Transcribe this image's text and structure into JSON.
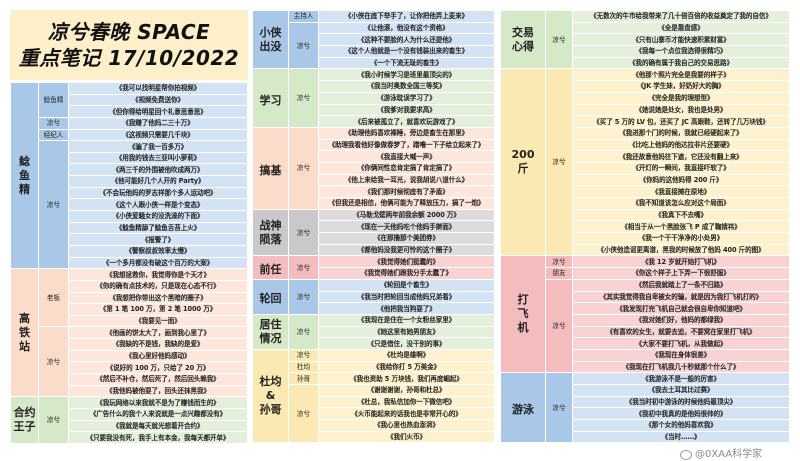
{
  "title": {
    "line1": "凉兮春晚 SPACE",
    "line2": "重点笔记 17/10/2022"
  },
  "watermark": "@0XAA科学家",
  "colors": {
    "blue": [
      "#a9c8e8",
      "#d3e3f4"
    ],
    "peach": [
      "#fbdccb",
      "#fde7dc"
    ],
    "green": [
      "#d5e8c8",
      "#e5f0dc"
    ],
    "grey": [
      "#c9c9c9",
      "#dcdcdc"
    ],
    "pink": [
      "#f5bcbf",
      "#f9d3d4"
    ],
    "yellow": [
      "#fbe9b3",
      "#fdf2cd"
    ]
  },
  "columns": [
    {
      "sections": [
        {
          "label": "鲶鱼精",
          "color": "blue",
          "groups": [
            {
              "speaker": "鲶鱼精",
              "quotes": [
                "《我可以找明星帮你拍视频》",
                "《视频免费送你》",
                "《但你得给明星回个礼意思意思》"
              ]
            },
            {
              "speaker": "凉兮",
              "quotes": [
                "《我赚了他妈二三十万》"
              ]
            },
            {
              "speaker": "经纪人",
              "quotes": [
                "《这视频只需要几千块》"
              ]
            },
            {
              "speaker": "凉兮",
              "quotes": [
                "《骗了我一百多万》",
                "《用我的钱去三亚叫小萝莉》",
                "《两三千的外围被他吹成两万》",
                "《他可能好几个人开的 Party》",
                "《不会玩他妈的罗志祥那个多人运动吧》",
                "《这个人跟小侠一样是个变态》",
                "《小侠爱騒女的没洗澡的下面》",
                "《鲶鱼精舔了鲶鱼舌苔上火》",
                "《报警了》",
                "《警察叔叔效率太慢》",
                "《一个多月都没有破这个百万的大案》"
              ]
            }
          ]
        },
        {
          "label": "高铁站",
          "color": "peach",
          "groups": [
            {
              "speaker": "老板",
              "quotes": [
                "《我想拯救你，我觉得你是个天才》",
                "《你的确有点技术的，只是现在心态不行》",
                "《我想把你带出这个黑暗的圈子》",
                "《第 1 笔 100 万，第 2 笔 1000 万》",
                "《我要见一面》"
              ]
            },
            {
              "speaker": "凉兮",
              "quotes": [
                "《他画的饼太大了，画到我心里了》",
                "《我缺的不是钱，我缺的是爱》",
                "《我心里好他妈感动》",
                "《说好的 100 万，只给了 20 万》",
                "《然后不补仓，然后死了，然后回头赖我》",
                "《我他妈被他耍了，回头还抹黑我》"
              ]
            }
          ]
        },
        {
          "label": "合约王子",
          "color": "green",
          "groups": [
            {
              "speaker": "凉兮",
              "quotes": [
                "《我玩网络以来我就不是为了赚钱而生的》",
                "《广告什么的我个人来说就是一点兴趣都没有》",
                "《我就是每天就光想着开合约》",
                "《只要我没有死，我手上有本金，我每天都开单》"
              ]
            }
          ]
        }
      ]
    },
    {
      "sections": [
        {
          "label": "小侠出没",
          "color": "blue",
          "groups": [
            {
              "speaker": "主持人",
              "quotes": [
                "《小侠在底下举手了，让你把他弄上麦来》"
              ]
            },
            {
              "speaker": "凉兮",
              "quotes": [
                "《让他滚，他没有这个资格》",
                "《这种不要脸的人为什么还提他》",
                "《这个人他就是一个没有钱装出来的畜生》",
                "《一个下流无耻的畜生》"
              ]
            }
          ]
        },
        {
          "label": "学习",
          "color": "green",
          "groups": [
            {
              "speaker": "凉兮",
              "quotes": [
                "《我小时候学习是班里最顶尖的》",
                "《我当时奥数全国三等奖》",
                "《游泳耽误学习了》",
                "《我爹对我要求高》",
                "《后来被孤立了，就喜欢玩游戏了》"
              ]
            }
          ]
        },
        {
          "label": "搞基",
          "color": "peach",
          "groups": [
            {
              "speaker": "凉兮",
              "quotes": [
                "《助理他妈喜欢裸睡，旁边是畜生在那里》",
                "《助理我看他好像做春梦了，蹭噜一下子给立起来了》",
                "《我直接大喊一声》",
                "《你俩同性恋肯定搞了肯定搞了》",
                "《他上来给我一耳光，说我胡说八道什么》",
                "《我们那时候彻底有了矛盾》",
                "《但我还是相信，他俩可能为了释放压力，搞了一炮》"
              ]
            }
          ]
        },
        {
          "label": "战神陨落",
          "color": "grey",
          "groups": [
            {
              "speaker": "凉兮",
              "quotes": [
                "《马勒戈壁两年前我余额 2000 万》",
                "《现在一天他妈吃个他妈手擀面》",
                "《在那撸那个美团券》",
                "《都他妈没我更可怜的这个圈子》"
              ]
            }
          ]
        },
        {
          "label": "前任",
          "color": "pink",
          "groups": [
            {
              "speaker": "凉兮",
              "quotes": [
                "《我觉得她们挺蠢的》",
                "《我觉得她们跟我分手太蠢了》"
              ]
            }
          ]
        },
        {
          "label": "轮回",
          "color": "blue",
          "groups": [
            {
              "speaker": "凉兮",
              "quotes": [
                "《轮回是个畜生》",
                "《我当时把轮回当成他妈兄弟看》",
                "《他把我当狗耍了》"
              ]
            }
          ]
        },
        {
          "label": "居住情况",
          "color": "green",
          "groups": [
            {
              "speaker": "凉兮",
              "quotes": [
                "《我现在是住在一个女粉丝家里》",
                "《她这里有她男朋友》",
                "《只是借住，没干别的事》"
              ]
            }
          ]
        },
        {
          "label": "杜均 & 孙哥",
          "color": "yellow",
          "groups": [
            {
              "speaker": "凉兮",
              "quotes": [
                "《杜均是雄啊》"
              ]
            },
            {
              "speaker": "杜均",
              "quotes": [
                "《我给你打 5 万美金》"
              ]
            },
            {
              "speaker": "孙哥",
              "quotes": [
                "《我也资助 5 万块钱，我们再度崛起》"
              ]
            },
            {
              "speaker": "凉兮",
              "quotes": [
                "《谢谢谢谢，孙哥和杜总》",
                "《杜总，我私信加你一下微信吧》",
                "《火币能起来的话我也是非常开心的》",
                "《我心里也热血澎湃》",
                "《我们火币》"
              ]
            }
          ]
        }
      ]
    },
    {
      "sections": [
        {
          "label": "交易心得",
          "color": "green",
          "groups": [
            {
              "speaker": "凉兮",
              "quotes": [
                "《无数次的牛市给我带来了几十倍百倍的收益奠定了我的自信》",
                "《全是靠盘感》",
                "《只有山寨币才能快速积累财富》",
                "《我每一个点位我选得很精巧》",
                "《我的确有属于我自己的交易思路》"
              ]
            }
          ]
        },
        {
          "label": "200斤",
          "color": "yellow",
          "groups": [
            {
              "speaker": "凉兮",
              "quotes": [
                "《他那个照片完全是我要的样子》",
                "《JK 学生妹，好奶好大的胸》",
                "《完全是我的理想型》",
                "《她说她是处女，我也是处男》",
                "《买了 5 万的 LV 包，还买了 JC 高跟鞋，还转了几万块钱》",
                "《我进那个门的时候，我就已经硬起来了》",
                "《比吃上他妈的他达拉非片还要硬》",
                "《我还故意他妈往下遮，它还没有翻上来》",
                "《开灯的一瞬间，我直接吓软了》",
                "《你妈的这他妈得 200 斤》",
                "《我直接摊在原地》",
                "《我不知道该怎么应对这个局面》",
                "《我真下不去嘴》",
                "《相当于从一个黑脸张飞 P 成了鞠婧祎》",
                "《我一个干干净净的小处男》",
                "《小侠他造谣更离谱，黑我的时候放了他妈 400 斤的图》"
              ]
            }
          ]
        },
        {
          "label": "打飞机",
          "color": "pink",
          "groups": [
            {
              "speaker": "凉兮",
              "quotes": [
                "《我 12 岁就开始打飞机》"
              ]
            },
            {
              "speaker": "朋友",
              "quotes": [
                "《你这个样子上下弄一下很舒服》"
              ]
            },
            {
              "speaker": "凉兮",
              "quotes": [
                "《然后我就踏上了一条不归路》",
                "《其实我觉得我自卑被女的骗，就是因为我打飞机打的》",
                "《我发现打完飞机自己就会很自卑你知道吧》",
                "《我对她们好，他妈的都绿我》",
                "《有喜欢的女生，就要去追，不要窝在家里打飞机》",
                "《大家不要打飞机，从我做起》",
                "《我现在身体很差》",
                "《我现在打飞机我几十秒就那个什么了》"
              ]
            }
          ]
        },
        {
          "label": "游泳",
          "color": "blue",
          "groups": [
            {
              "speaker": "凉兮",
              "quotes": [
                "《我游泳不是一般的厉害》",
                "《我去土耳其比过赛》",
                "《我当时初中游泳的时候他妈最顶尖》",
                "《我初中我真的是他妈很帅的》",
                "《那个女的他妈喜欢我》",
                "《当时……》"
              ]
            }
          ]
        }
      ]
    }
  ]
}
